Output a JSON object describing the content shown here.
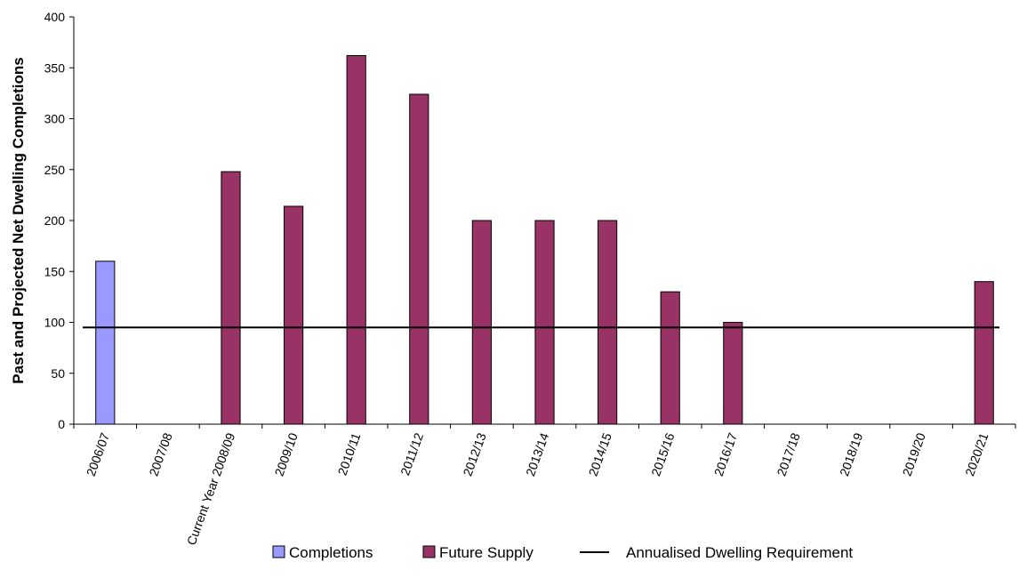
{
  "chart_data": {
    "type": "bar",
    "title": "",
    "xlabel": "",
    "ylabel": "Past and Projected Net Dwelling Completions",
    "ylim": [
      0,
      400
    ],
    "yticks": [
      0,
      50,
      100,
      150,
      200,
      250,
      300,
      350,
      400
    ],
    "categories": [
      "2006/07",
      "2007/08",
      "Current Year 2008/09",
      "2009/10",
      "2010/11",
      "2011/12",
      "2012/13",
      "2013/14",
      "2014/15",
      "2015/16",
      "2016/17",
      "2017/18",
      "2018/19",
      "2019/20",
      "2020/21"
    ],
    "series": [
      {
        "name": "Completions",
        "kind": "bar",
        "color": "#9999ff",
        "values": [
          160,
          null,
          null,
          null,
          null,
          null,
          null,
          null,
          null,
          null,
          null,
          null,
          null,
          null,
          null
        ]
      },
      {
        "name": "Future Supply",
        "kind": "bar",
        "color": "#993366",
        "values": [
          null,
          null,
          248,
          214,
          362,
          324,
          200,
          200,
          200,
          130,
          100,
          null,
          null,
          null,
          140
        ]
      },
      {
        "name": "Annualised Dwelling Requirement",
        "kind": "line",
        "color": "#000000",
        "values": [
          95,
          95,
          95,
          95,
          95,
          95,
          95,
          95,
          95,
          95,
          95,
          95,
          95,
          95,
          95
        ]
      }
    ],
    "grid": false,
    "legend": "bottom"
  }
}
